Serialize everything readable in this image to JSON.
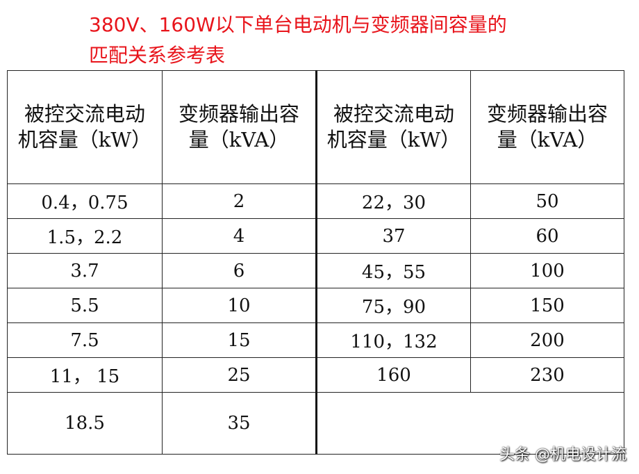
{
  "title": {
    "lines": [
      "380V、160W以下单台电动机与变频器间容量的",
      "匹配关系参考表"
    ]
  },
  "table": {
    "left": {
      "headers": [
        "被控交流电动机容量（kW）",
        "变频器输出容量（kVA）"
      ],
      "rows": [
        [
          "0.4，0.75",
          "2"
        ],
        [
          "1.5，2.2",
          "4"
        ],
        [
          "3.7",
          "6"
        ],
        [
          "5.5",
          "10"
        ],
        [
          "7.5",
          "15"
        ],
        [
          "11， 15",
          "25"
        ],
        [
          "18.5",
          "35"
        ]
      ]
    },
    "right": {
      "headers": [
        "被控交流电动机容量（kW）",
        "变频器输出容量（kVA）"
      ],
      "rows": [
        [
          "22，30",
          "50"
        ],
        [
          "37",
          "60"
        ],
        [
          "45，55",
          "100"
        ],
        [
          "75，90",
          "150"
        ],
        [
          "110，132",
          "200"
        ],
        [
          "160",
          "230"
        ]
      ]
    }
  },
  "watermark": "头条 @机电设计流"
}
